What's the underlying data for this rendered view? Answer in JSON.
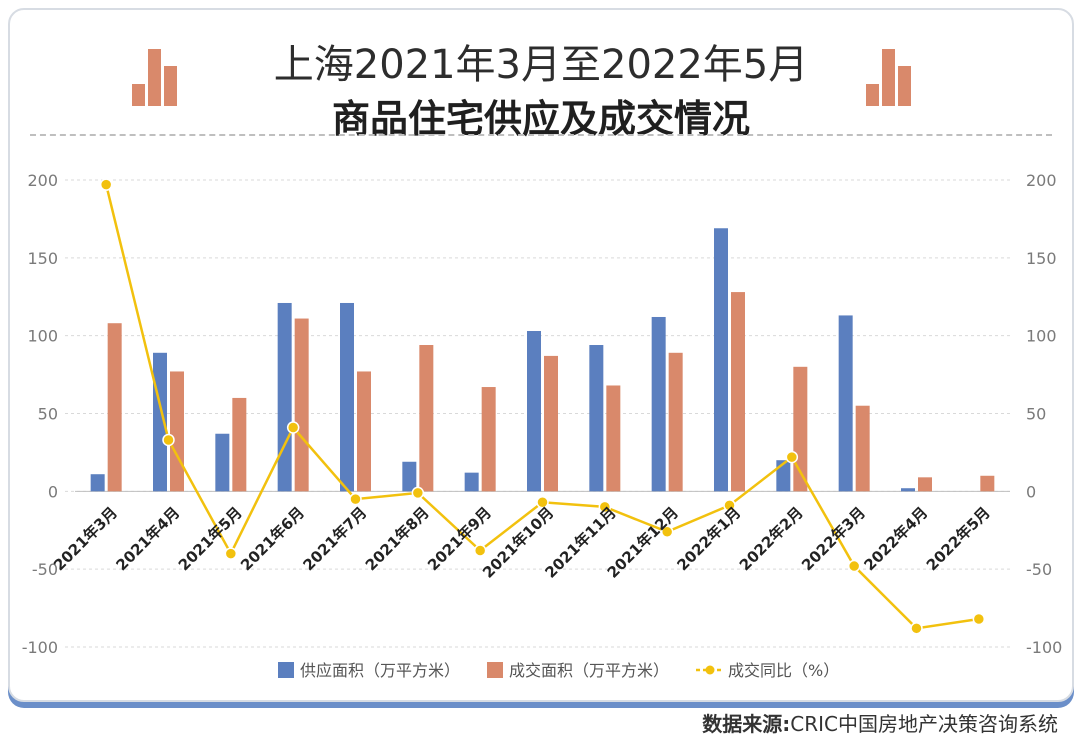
{
  "title_line1": "上海2021年3月至2022年5月",
  "title_line2": "商品住宅供应及成交情况",
  "source_label": "数据来源:",
  "source_text": "CRIC中国房地产决策咨询系统",
  "colors": {
    "supply": "#5b7fbf",
    "transaction": "#d9896b",
    "yoy": "#f2c10e",
    "deco": "#d9896b"
  },
  "chart_data": {
    "type": "bar",
    "categories": [
      "2021年3月",
      "2021年4月",
      "2021年5月",
      "2021年6月",
      "2021年7月",
      "2021年8月",
      "2021年9月",
      "2021年10月",
      "2021年11月",
      "2021年12月",
      "2022年1月",
      "2022年2月",
      "2022年3月",
      "2022年4月",
      "2022年5月"
    ],
    "series": [
      {
        "name": "供应面积（万平方米）",
        "type": "bar",
        "values": [
          11,
          89,
          37,
          121,
          121,
          19,
          12,
          103,
          94,
          112,
          169,
          20,
          113,
          2,
          0
        ]
      },
      {
        "name": "成交面积（万平方米）",
        "type": "bar",
        "values": [
          108,
          77,
          60,
          111,
          77,
          94,
          67,
          87,
          68,
          89,
          128,
          80,
          55,
          9,
          10
        ]
      },
      {
        "name": "成交同比（%）",
        "type": "line",
        "values": [
          197,
          33,
          -40,
          41,
          -5,
          -1,
          -38,
          -7,
          -10,
          -26,
          -9,
          22,
          -48,
          -88,
          -82
        ]
      }
    ],
    "ylim": [
      -100,
      200
    ],
    "yticks": [
      200,
      150,
      100,
      50,
      0,
      -50,
      -100
    ],
    "legend_position": "bottom",
    "grid": true
  }
}
